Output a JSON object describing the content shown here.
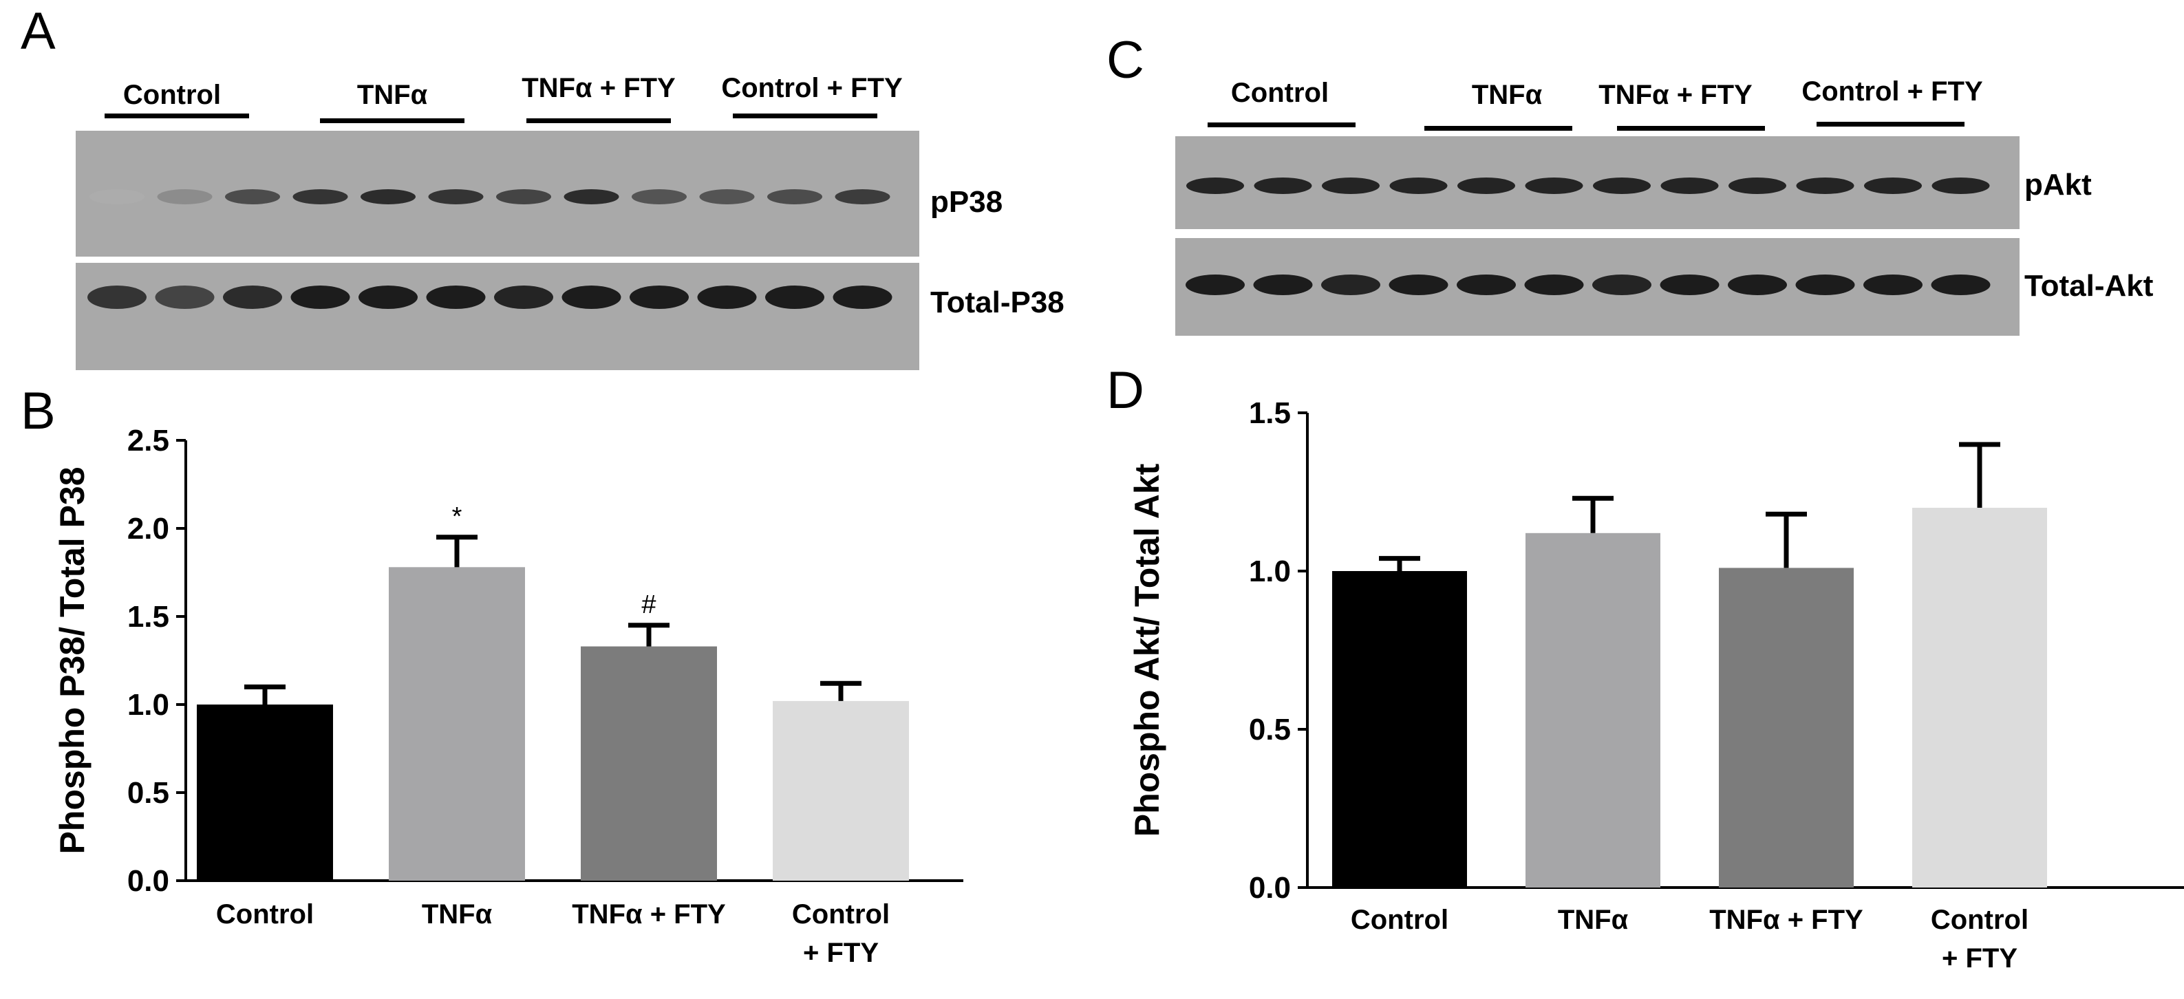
{
  "panels": {
    "A": {
      "letter": "A",
      "groups": [
        "Control",
        "TNFα",
        "TNFα + FTY",
        "Control + FTY"
      ],
      "band_labels": [
        "pP38",
        "Total-P38"
      ],
      "band_intensity": {
        "top": [
          0.05,
          0.25,
          0.65,
          0.8,
          0.85,
          0.8,
          0.7,
          0.85,
          0.6,
          0.6,
          0.65,
          0.75
        ],
        "bottom": [
          0.8,
          0.7,
          0.85,
          0.95,
          0.95,
          0.95,
          0.9,
          0.95,
          0.95,
          0.95,
          0.95,
          0.95
        ]
      }
    },
    "B": {
      "letter": "B"
    },
    "C": {
      "letter": "C",
      "groups": [
        "Control",
        "TNFα",
        "TNFα + FTY",
        "Control + FTY"
      ],
      "band_labels": [
        "pAkt",
        "Total-Akt"
      ],
      "band_intensity": {
        "top": [
          0.9,
          0.9,
          0.9,
          0.9,
          0.9,
          0.9,
          0.9,
          0.9,
          0.9,
          0.9,
          0.9,
          0.9
        ],
        "bottom": [
          0.95,
          0.95,
          0.9,
          0.95,
          0.95,
          0.95,
          0.9,
          0.95,
          0.95,
          0.95,
          0.95,
          0.95
        ]
      }
    },
    "D": {
      "letter": "D"
    }
  },
  "chart_data": [
    {
      "panel": "B",
      "type": "bar",
      "categories": [
        "Control",
        "TNFα",
        "TNFα + FTY",
        "Control\n+ FTY"
      ],
      "values": [
        1.0,
        1.78,
        1.33,
        1.02
      ],
      "errors": [
        0.1,
        0.17,
        0.12,
        0.1
      ],
      "annotations": [
        "",
        "*",
        "#",
        ""
      ],
      "colors": [
        "#000000",
        "#a6a6a8",
        "#7c7c7c",
        "#dcdcdc"
      ],
      "ylabel": "Phospho P38/ Total P38",
      "ylim": [
        0,
        2.5
      ],
      "yticks": [
        "0.0",
        "0.5",
        "1.0",
        "1.5",
        "2.0",
        "2.5"
      ],
      "grid": false
    },
    {
      "panel": "D",
      "type": "bar",
      "categories": [
        "Control",
        "TNFα",
        "TNFα + FTY",
        "Control\n+ FTY"
      ],
      "values": [
        1.0,
        1.12,
        1.01,
        1.2
      ],
      "errors": [
        0.04,
        0.11,
        0.17,
        0.2
      ],
      "annotations": [
        "",
        "",
        "",
        ""
      ],
      "colors": [
        "#000000",
        "#a6a6a8",
        "#7c7c7c",
        "#dcdcdc"
      ],
      "ylabel": "Phospho Akt/ Total Akt",
      "ylim": [
        0,
        1.5
      ],
      "yticks": [
        "0.0",
        "0.5",
        "1.0",
        "1.5"
      ],
      "grid": false
    }
  ]
}
